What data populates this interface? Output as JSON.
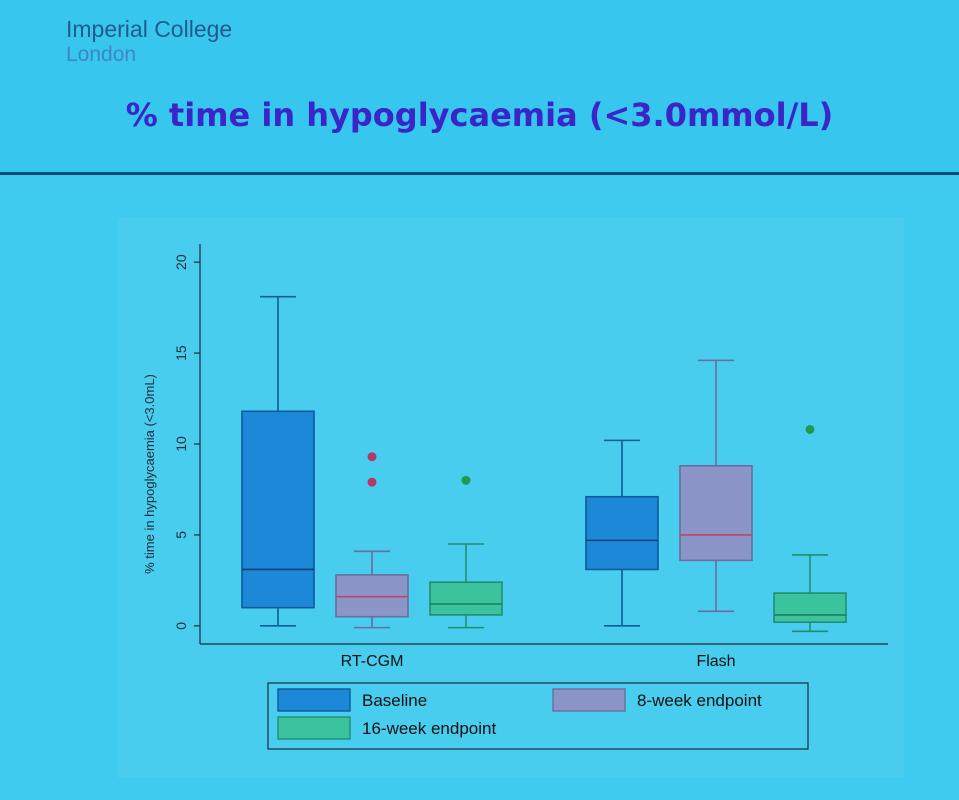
{
  "slide": {
    "logo_line1": "Imperial College",
    "logo_line2": "London",
    "title": "% time in hypoglycaemia (<3.0mmol/L)"
  },
  "chart_data": {
    "type": "box",
    "ylabel": "% time in hypoglycaemia (<3.0mL)",
    "ylim": [
      -1,
      21
    ],
    "yticks": [
      0,
      5,
      10,
      15,
      20
    ],
    "categories": [
      "RT-CGM",
      "Flash"
    ],
    "series": [
      {
        "name": "Baseline",
        "color": "#1e88d8",
        "boxes": [
          {
            "whisker_low": 0.0,
            "q1": 1.0,
            "median": 3.1,
            "q3": 11.8,
            "whisker_high": 18.1,
            "outliers": []
          },
          {
            "whisker_low": 0.0,
            "q1": 3.1,
            "median": 4.7,
            "q3": 7.1,
            "whisker_high": 10.2,
            "outliers": []
          }
        ]
      },
      {
        "name": "8-week endpoint",
        "color": "#8c95c7",
        "boxes": [
          {
            "whisker_low": -0.1,
            "q1": 0.5,
            "median": 1.6,
            "q3": 2.8,
            "whisker_high": 4.1,
            "outliers": [
              7.9,
              9.3
            ]
          },
          {
            "whisker_low": 0.8,
            "q1": 3.6,
            "median": 5.0,
            "q3": 8.8,
            "whisker_high": 14.6,
            "outliers": []
          }
        ]
      },
      {
        "name": "16-week endpoint",
        "color": "#3bc39e",
        "boxes": [
          {
            "whisker_low": -0.1,
            "q1": 0.6,
            "median": 1.2,
            "q3": 2.4,
            "whisker_high": 4.5,
            "outliers": [
              8.0
            ]
          },
          {
            "whisker_low": -0.3,
            "q1": 0.2,
            "median": 0.6,
            "q3": 1.8,
            "whisker_high": 3.9,
            "outliers": [
              10.8
            ]
          }
        ]
      }
    ],
    "legend": {
      "placement": "bottom",
      "items": [
        "Baseline",
        "8-week endpoint",
        "16-week endpoint"
      ]
    },
    "grid": false
  }
}
